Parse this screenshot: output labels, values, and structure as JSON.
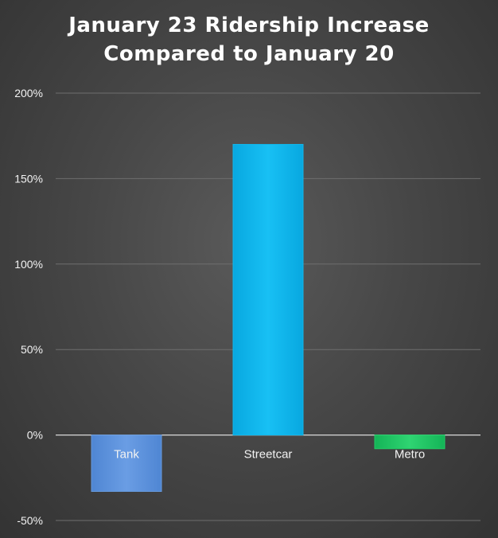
{
  "chart_data": {
    "type": "bar",
    "title": [
      "January 23 Ridership Increase",
      "Compared to January 20"
    ],
    "categories": [
      "Tank",
      "Streetcar",
      "Metro"
    ],
    "values": [
      -33,
      170,
      -8
    ],
    "ylim": [
      -50,
      200
    ],
    "yticks": [
      200,
      150,
      100,
      50,
      0,
      -50
    ],
    "ytick_labels": [
      "200%",
      "150%",
      "100%",
      "50%",
      "0%",
      "-50%"
    ],
    "grid": true,
    "bar_colors": [
      "#6699dd",
      "#11b8ec",
      "#22cc66"
    ]
  }
}
